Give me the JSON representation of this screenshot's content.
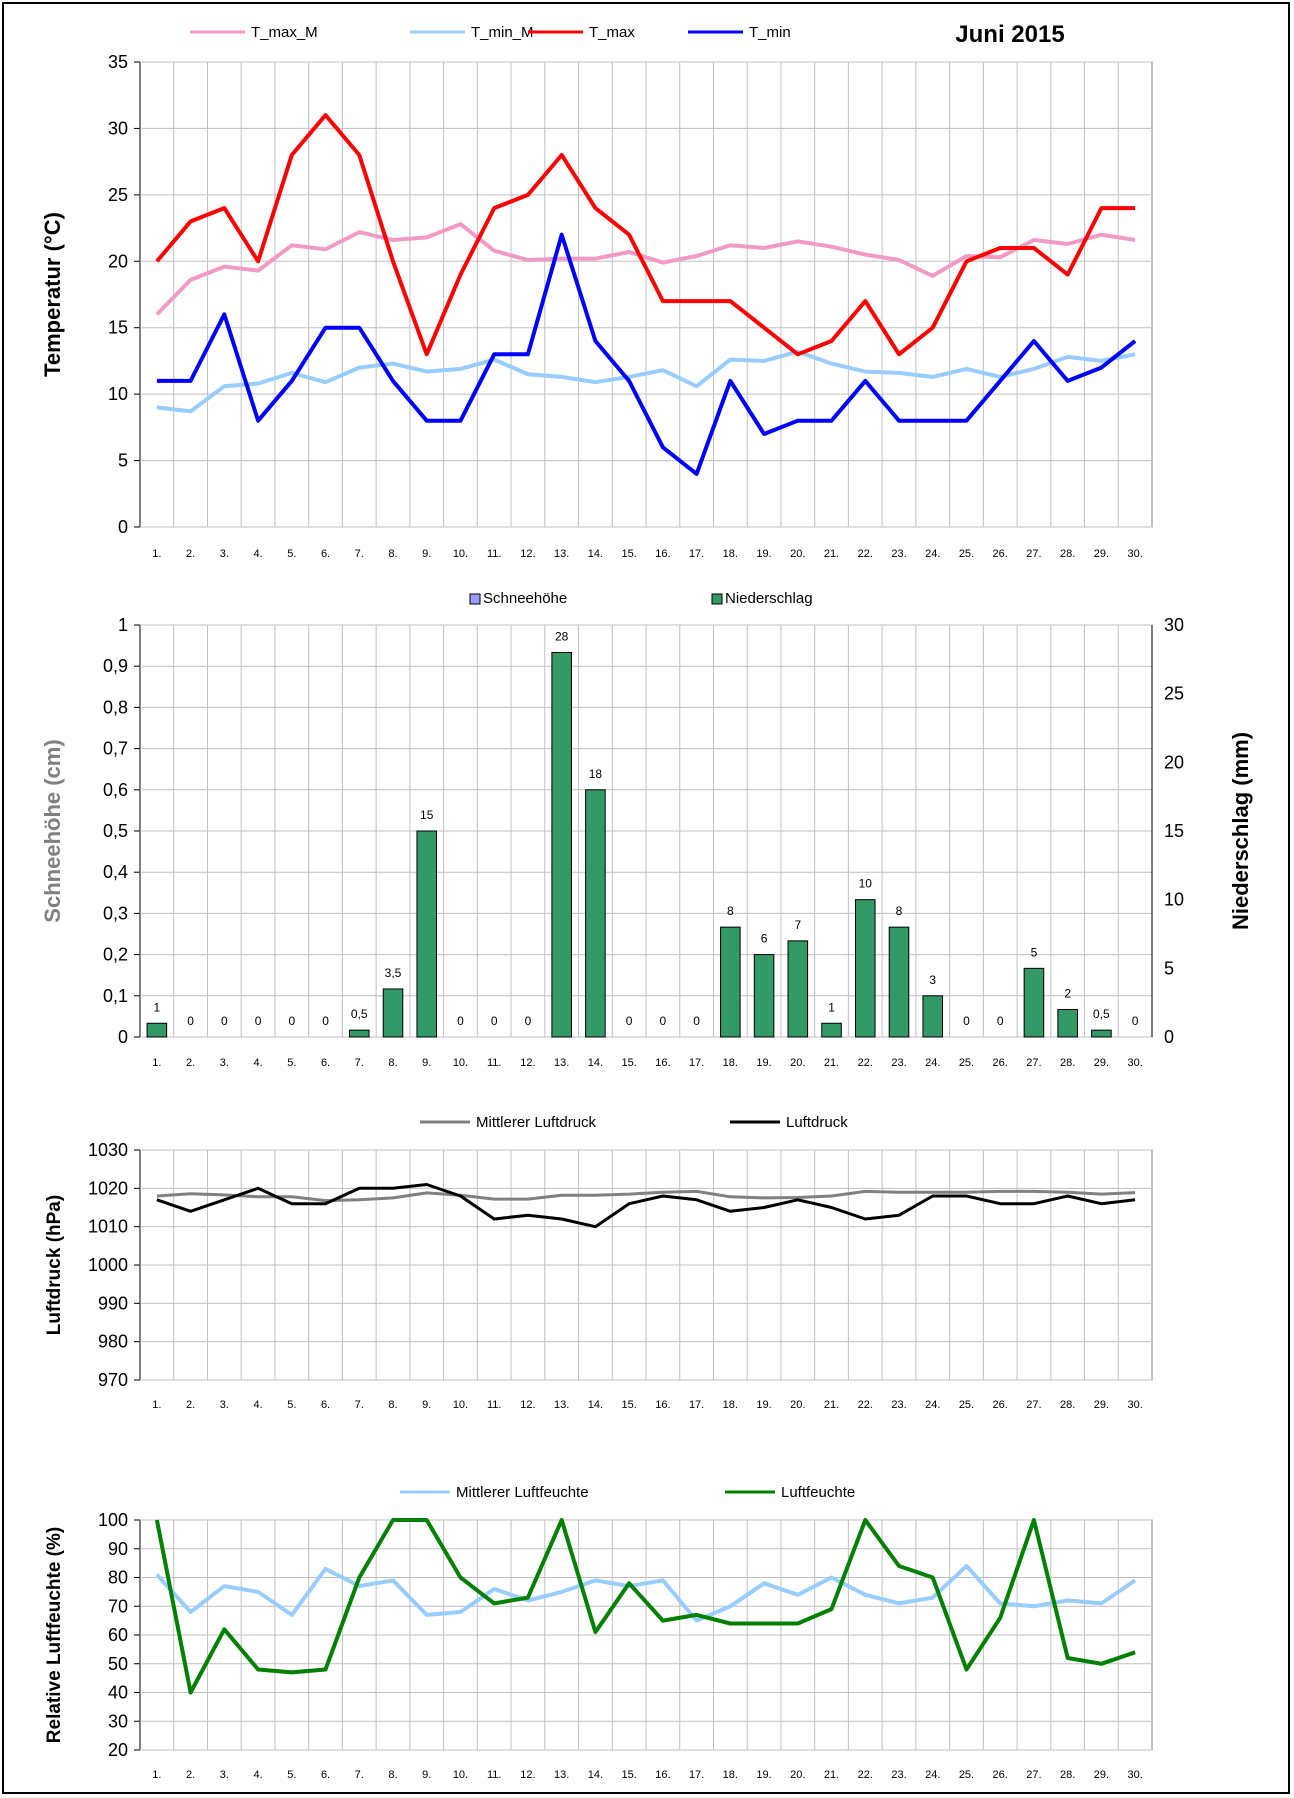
{
  "title": "Juni 2015",
  "days": [
    "1.",
    "2.",
    "3.",
    "4.",
    "5.",
    "6.",
    "7.",
    "8.",
    "9.",
    "10.",
    "11.",
    "12.",
    "13.",
    "14.",
    "15.",
    "16.",
    "17.",
    "18.",
    "19.",
    "20.",
    "21.",
    "22.",
    "23.",
    "24.",
    "25.",
    "26.",
    "27.",
    "28.",
    "29.",
    "30."
  ],
  "chart_data": [
    {
      "type": "line",
      "ylabel": "Temperatur (°C)",
      "ylim": [
        0,
        35
      ],
      "yticks": [
        0,
        5,
        10,
        15,
        20,
        25,
        30,
        35
      ],
      "grid": true,
      "legend": "top",
      "series": [
        {
          "name": "T_max_M",
          "color": "#f29ac6",
          "values": [
            16,
            18.6,
            19.6,
            19.3,
            21.2,
            20.9,
            22.2,
            21.6,
            21.8,
            22.8,
            20.8,
            20.1,
            20.2,
            20.2,
            20.7,
            19.9,
            20.4,
            21.2,
            21.0,
            21.5,
            21.1,
            20.5,
            20.1,
            18.9,
            20.4,
            20.3,
            21.6,
            21.3,
            22.0,
            21.6
          ]
        },
        {
          "name": "T_min_M",
          "color": "#99ccff",
          "values": [
            9.0,
            8.7,
            10.6,
            10.8,
            11.6,
            10.9,
            12.0,
            12.3,
            11.7,
            11.9,
            12.6,
            11.5,
            11.3,
            10.9,
            11.3,
            11.8,
            10.6,
            12.6,
            12.5,
            13.2,
            12.3,
            11.7,
            11.6,
            11.3,
            11.9,
            11.3,
            11.9,
            12.8,
            12.5,
            13.0
          ]
        },
        {
          "name": "T_max",
          "color": "#ff0000",
          "values": [
            20,
            23,
            24,
            20,
            28,
            31,
            28,
            20,
            13,
            19,
            24,
            25,
            28,
            24,
            22,
            17,
            17,
            17,
            15,
            13,
            14,
            17,
            13,
            15,
            20,
            21,
            21,
            19,
            24,
            24
          ]
        },
        {
          "name": "T_min",
          "color": "#0000ff",
          "values": [
            11,
            11,
            16,
            8,
            11,
            15,
            15,
            11,
            8,
            8,
            13,
            13,
            22,
            14,
            11,
            6,
            4,
            11,
            7,
            8,
            8,
            11,
            8,
            8,
            8,
            11,
            14,
            11,
            12,
            14
          ]
        }
      ]
    },
    {
      "type": "bar",
      "ylabel_left": "Schneehöhe (cm)",
      "ylabel_right": "Niederschlag (mm)",
      "ylim_left": [
        0,
        1
      ],
      "ylim_right": [
        0,
        30
      ],
      "yticks_left": [
        "0",
        "0,1",
        "0,2",
        "0,3",
        "0,4",
        "0,5",
        "0,6",
        "0,7",
        "0,8",
        "0,9",
        "1"
      ],
      "yticks_right": [
        "0",
        "5",
        "10",
        "15",
        "20",
        "25",
        "30"
      ],
      "grid": true,
      "legend": "top",
      "series": [
        {
          "name": "Schneehöhe",
          "color": "#9999ff",
          "axis": "left",
          "values": [
            0,
            0,
            0,
            0,
            0,
            0,
            0,
            0,
            0,
            0,
            0,
            0,
            0,
            0,
            0,
            0,
            0,
            0,
            0,
            0,
            0,
            0,
            0,
            0,
            0,
            0,
            0,
            0,
            0,
            0
          ]
        },
        {
          "name": "Niederschlag",
          "color": "#339966",
          "axis": "right",
          "values": [
            1,
            0,
            0,
            0,
            0,
            0,
            0.5,
            3.5,
            15,
            0,
            0,
            0,
            28,
            18,
            0,
            0,
            0,
            8,
            6,
            7,
            1,
            10,
            8,
            3,
            0,
            0,
            5,
            2,
            0.5,
            0
          ],
          "labels": [
            "1",
            "0",
            "0",
            "0",
            "0",
            "0",
            "0,5",
            "3,5",
            "15",
            "0",
            "0",
            "0",
            "28",
            "18",
            "0",
            "0",
            "0",
            "8",
            "6",
            "7",
            "1",
            "10",
            "8",
            "3",
            "0",
            "0",
            "5",
            "2",
            "0,5",
            "0"
          ]
        }
      ]
    },
    {
      "type": "line",
      "ylabel": "Luftdruck (hPa)",
      "ylim": [
        970,
        1030
      ],
      "yticks": [
        970,
        980,
        990,
        1000,
        1010,
        1020,
        1030
      ],
      "grid": true,
      "legend": "top",
      "series": [
        {
          "name": "Mittlerer Luftdruck",
          "color": "#808080",
          "values": [
            1018,
            1018.6,
            1018.3,
            1017.8,
            1017.8,
            1016.8,
            1017,
            1017.5,
            1018.8,
            1018.2,
            1017.2,
            1017.2,
            1018.2,
            1018.2,
            1018.5,
            1019,
            1019.2,
            1017.8,
            1017.5,
            1017.6,
            1018,
            1019.2,
            1019,
            1019,
            1019,
            1019.2,
            1019.2,
            1019,
            1018.5,
            1018.9
          ]
        },
        {
          "name": "Luftdruck",
          "color": "#000000",
          "values": [
            1017,
            1014,
            1017,
            1020,
            1016,
            1016,
            1020,
            1020,
            1021,
            1018,
            1012,
            1013,
            1012,
            1010,
            1016,
            1018,
            1017,
            1014,
            1015,
            1017,
            1015,
            1012,
            1013,
            1018,
            1018,
            1016,
            1016,
            1018,
            1016,
            1017
          ]
        }
      ]
    },
    {
      "type": "line",
      "ylabel": "Relative Luftfeuchte (%)",
      "ylim": [
        20,
        100
      ],
      "yticks": [
        20,
        30,
        40,
        50,
        60,
        70,
        80,
        90,
        100
      ],
      "grid": true,
      "legend": "top",
      "series": [
        {
          "name": "Mittlerer Luftfeuchte",
          "color": "#99ccff",
          "values": [
            81,
            68,
            77,
            75,
            67,
            83,
            77,
            79,
            67,
            68,
            76,
            72,
            75,
            79,
            77,
            79,
            65,
            70,
            78,
            74,
            80,
            74,
            71,
            73,
            84,
            71,
            70,
            72,
            71,
            79
          ]
        },
        {
          "name": "Luftfeuchte",
          "color": "#008000",
          "values": [
            100,
            40,
            62,
            48,
            47,
            48,
            80,
            100,
            100,
            80,
            71,
            73,
            100,
            61,
            78,
            65,
            67,
            64,
            64,
            64,
            69,
            100,
            84,
            80,
            48,
            66,
            100,
            52,
            50,
            54
          ]
        }
      ]
    }
  ]
}
